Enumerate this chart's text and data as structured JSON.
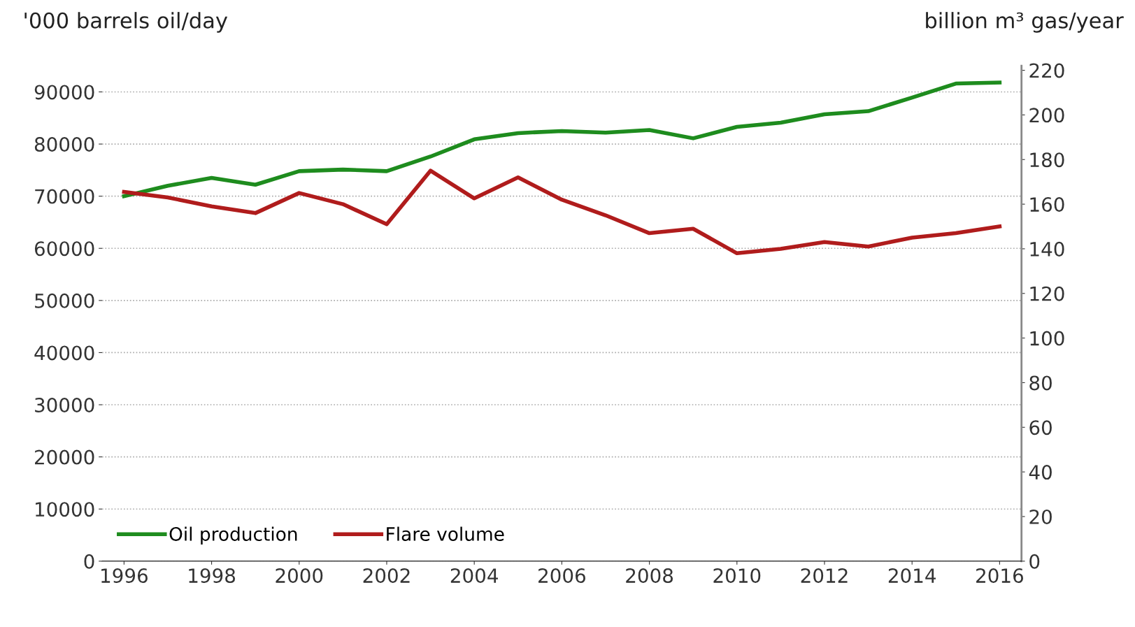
{
  "chart_data": {
    "type": "line",
    "ylabel": "'000 barrels oil/day",
    "y2label": "billion m³ gas/year",
    "x": [
      1996,
      1997,
      1998,
      1999,
      2000,
      2001,
      2002,
      2003,
      2004,
      2005,
      2006,
      2007,
      2008,
      2009,
      2010,
      2011,
      2012,
      2013,
      2014,
      2015,
      2016
    ],
    "series": [
      {
        "name": "Oil production",
        "color": "#1e8c1e",
        "values": [
          70000,
          72000,
          73500,
          72200,
          74800,
          75100,
          74800,
          77600,
          80900,
          82100,
          82500,
          82200,
          82700,
          81100,
          83300,
          84100,
          85700,
          86300,
          88900,
          91600,
          91800
        ]
      },
      {
        "name": "Flare volume",
        "color": "#b01c1c",
        "axis": "y2",
        "values": [
          165.5,
          163,
          159,
          156,
          165,
          160,
          151,
          175,
          162.6,
          172,
          162,
          155,
          147,
          149,
          138,
          140,
          143,
          141,
          145,
          147,
          150
        ]
      }
    ],
    "xlim": [
      1995.5,
      2016.5
    ],
    "xticks": [
      1996,
      1998,
      2000,
      2002,
      2004,
      2006,
      2008,
      2010,
      2012,
      2014,
      2016
    ],
    "ylim": [
      0,
      95000
    ],
    "yticks": [
      0,
      10000,
      20000,
      30000,
      40000,
      50000,
      60000,
      70000,
      80000,
      90000
    ],
    "y2lim": [
      0,
      222
    ],
    "y2ticks": [
      0,
      20,
      40,
      60,
      80,
      100,
      120,
      140,
      160,
      180,
      200,
      220
    ],
    "grid": "y",
    "legend": "bottom left",
    "marker": "none",
    "line_style": "solid"
  }
}
